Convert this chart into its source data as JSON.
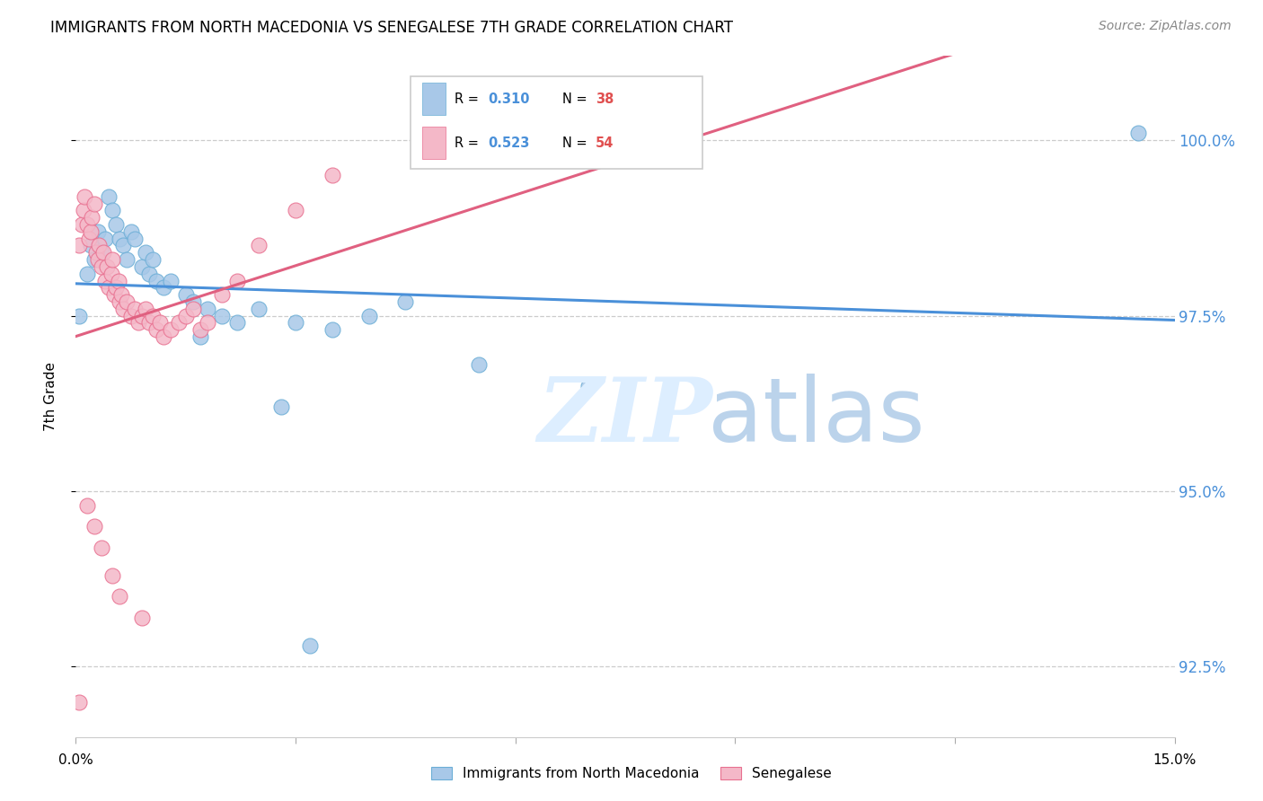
{
  "title": "IMMIGRANTS FROM NORTH MACEDONIA VS SENEGALESE 7TH GRADE CORRELATION CHART",
  "source": "Source: ZipAtlas.com",
  "ylabel": "7th Grade",
  "ytick_values": [
    92.5,
    95.0,
    97.5,
    100.0
  ],
  "xlim": [
    0.0,
    15.0
  ],
  "ylim": [
    91.5,
    101.2
  ],
  "blue_color": "#a8c8e8",
  "blue_edge_color": "#6baed6",
  "pink_color": "#f4b8c8",
  "pink_edge_color": "#e87090",
  "blue_line_color": "#4a90d9",
  "pink_line_color": "#e06080",
  "R_blue": "0.310",
  "N_blue": "38",
  "R_pink": "0.523",
  "N_pink": "54",
  "blue_scatter_x": [
    0.15,
    0.2,
    0.25,
    0.3,
    0.35,
    0.4,
    0.45,
    0.5,
    0.55,
    0.6,
    0.65,
    0.7,
    0.75,
    0.8,
    0.9,
    0.95,
    1.0,
    1.05,
    1.1,
    1.2,
    1.3,
    1.5,
    1.6,
    1.8,
    2.0,
    2.2,
    2.5,
    3.0,
    3.5,
    4.0,
    4.5,
    5.5,
    7.0,
    14.5,
    0.05,
    1.7,
    2.8,
    3.2
  ],
  "blue_scatter_y": [
    98.1,
    98.5,
    98.3,
    98.7,
    98.4,
    98.6,
    99.2,
    99.0,
    98.8,
    98.6,
    98.5,
    98.3,
    98.7,
    98.6,
    98.2,
    98.4,
    98.1,
    98.3,
    98.0,
    97.9,
    98.0,
    97.8,
    97.7,
    97.6,
    97.5,
    97.4,
    97.6,
    97.4,
    97.3,
    97.5,
    97.7,
    96.8,
    96.5,
    100.1,
    97.5,
    97.2,
    96.2,
    92.8
  ],
  "pink_scatter_x": [
    0.05,
    0.08,
    0.1,
    0.12,
    0.15,
    0.18,
    0.2,
    0.22,
    0.25,
    0.28,
    0.3,
    0.32,
    0.35,
    0.38,
    0.4,
    0.42,
    0.45,
    0.48,
    0.5,
    0.52,
    0.55,
    0.58,
    0.6,
    0.62,
    0.65,
    0.7,
    0.75,
    0.8,
    0.85,
    0.9,
    0.95,
    1.0,
    1.05,
    1.1,
    1.15,
    1.2,
    1.3,
    1.4,
    1.5,
    1.6,
    1.7,
    1.8,
    2.0,
    2.2,
    2.5,
    3.0,
    3.5,
    0.15,
    0.25,
    0.35,
    0.5,
    0.6,
    0.9,
    0.05
  ],
  "pink_scatter_y": [
    98.5,
    98.8,
    99.0,
    99.2,
    98.8,
    98.6,
    98.7,
    98.9,
    99.1,
    98.4,
    98.3,
    98.5,
    98.2,
    98.4,
    98.0,
    98.2,
    97.9,
    98.1,
    98.3,
    97.8,
    97.9,
    98.0,
    97.7,
    97.8,
    97.6,
    97.7,
    97.5,
    97.6,
    97.4,
    97.5,
    97.6,
    97.4,
    97.5,
    97.3,
    97.4,
    97.2,
    97.3,
    97.4,
    97.5,
    97.6,
    97.3,
    97.4,
    97.8,
    98.0,
    98.5,
    99.0,
    99.5,
    94.8,
    94.5,
    94.2,
    93.8,
    93.5,
    93.2,
    92.0
  ]
}
